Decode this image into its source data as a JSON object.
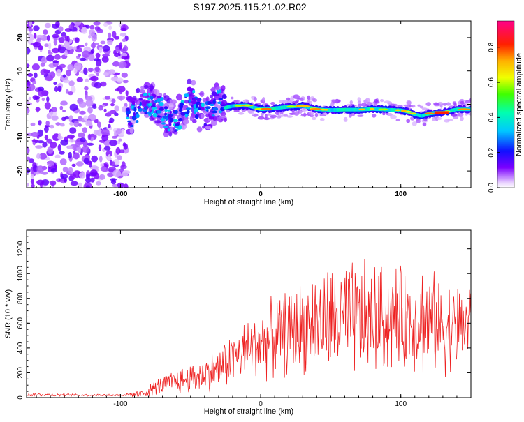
{
  "figure_title": "S197.2025.115.21.02.R02",
  "colors": {
    "snr_line": "#ee2222",
    "axis": "#000000",
    "background": "#ffffff"
  },
  "chart_data": [
    {
      "type": "heatmap",
      "xlabel": "Height of straight line (km)",
      "ylabel": "Frequency (Hz)",
      "xlim": [
        -167,
        150
      ],
      "ylim": [
        -25,
        25
      ],
      "x_ticks": [
        -100,
        0,
        100
      ],
      "y_ticks": [
        -20,
        -10,
        0,
        10,
        20
      ],
      "grid": false,
      "colorbar": {
        "label": "Normalized spectral amplitude",
        "range": [
          0,
          0.95
        ],
        "ticks": [
          "0.0",
          "0.2",
          "0.4",
          "0.6",
          "0.8"
        ],
        "colormap": "rainbow (white-violet-blue-cyan-green-yellow-orange-red-pink)"
      },
      "regions": [
        {
          "x_range": [
            -167,
            -95
          ],
          "description": "broadband noise",
          "freq_range": [
            -25,
            25
          ],
          "amplitude": 0.15
        },
        {
          "x_range": [
            -95,
            -25
          ],
          "description": "scattered features",
          "freq_range": [
            -13,
            7
          ],
          "amplitude": 0.3
        },
        {
          "x_range": [
            -25,
            150
          ],
          "description": "narrow tone",
          "freq_range": [
            -3,
            1
          ],
          "amplitude": 0.75
        }
      ],
      "tone_track": [
        [
          -95,
          -4
        ],
        [
          -90,
          -2.5
        ],
        [
          -85,
          -0.5
        ],
        [
          -80,
          0
        ],
        [
          -75,
          0
        ],
        [
          -70,
          -2
        ],
        [
          -65,
          -4.5
        ],
        [
          -60,
          -5
        ],
        [
          -55,
          -2
        ],
        [
          -50,
          2
        ],
        [
          -45,
          -1
        ],
        [
          -40,
          -3
        ],
        [
          -35,
          -1
        ],
        [
          -30,
          1
        ],
        [
          -25,
          -1
        ],
        [
          -20,
          -0.5
        ],
        [
          -10,
          -0.3
        ],
        [
          0,
          -1.5
        ],
        [
          10,
          -1.2
        ],
        [
          20,
          -0.7
        ],
        [
          30,
          -0.5
        ],
        [
          40,
          -1.5
        ],
        [
          50,
          -1.7
        ],
        [
          60,
          -1.6
        ],
        [
          70,
          -1.6
        ],
        [
          80,
          -1.4
        ],
        [
          90,
          -1.6
        ],
        [
          100,
          -1.8
        ],
        [
          105,
          -2.2
        ],
        [
          110,
          -3
        ],
        [
          115,
          -3.5
        ],
        [
          120,
          -2.8
        ],
        [
          125,
          -2.5
        ],
        [
          130,
          -2.5
        ],
        [
          135,
          -2
        ],
        [
          140,
          -1.5
        ],
        [
          145,
          -1.5
        ],
        [
          150,
          -1.5
        ]
      ]
    },
    {
      "type": "line",
      "xlabel": "Height of straight line (km)",
      "ylabel": "SNR (10 * v/v)",
      "xlim": [
        -167,
        150
      ],
      "ylim": [
        0,
        1350
      ],
      "x_ticks": [
        -100,
        0,
        100
      ],
      "y_ticks": [
        0,
        200,
        400,
        600,
        800,
        1000,
        1200
      ],
      "grid": false,
      "series": [
        {
          "color": "#ee2222",
          "envelope": {
            "x": [
              -167,
              -130,
              -100,
              -85,
              -75,
              -60,
              -45,
              -30,
              -20,
              -10,
              0,
              10,
              20,
              30,
              40,
              50,
              60,
              70,
              80,
              90,
              100,
              110,
              115,
              120,
              130,
              140,
              150
            ],
            "center": [
              25,
              20,
              20,
              30,
              80,
              130,
              170,
              230,
              320,
              380,
              440,
              480,
              530,
              580,
              600,
              610,
              620,
              620,
              640,
              630,
              640,
              620,
              650,
              620,
              580,
              560,
              600
            ],
            "amplitude": [
              15,
              10,
              10,
              30,
              70,
              110,
              140,
              180,
              230,
              260,
              300,
              330,
              370,
              400,
              450,
              470,
              500,
              500,
              480,
              450,
              430,
              420,
              500,
              420,
              400,
              380,
              420
            ]
          }
        }
      ]
    }
  ]
}
